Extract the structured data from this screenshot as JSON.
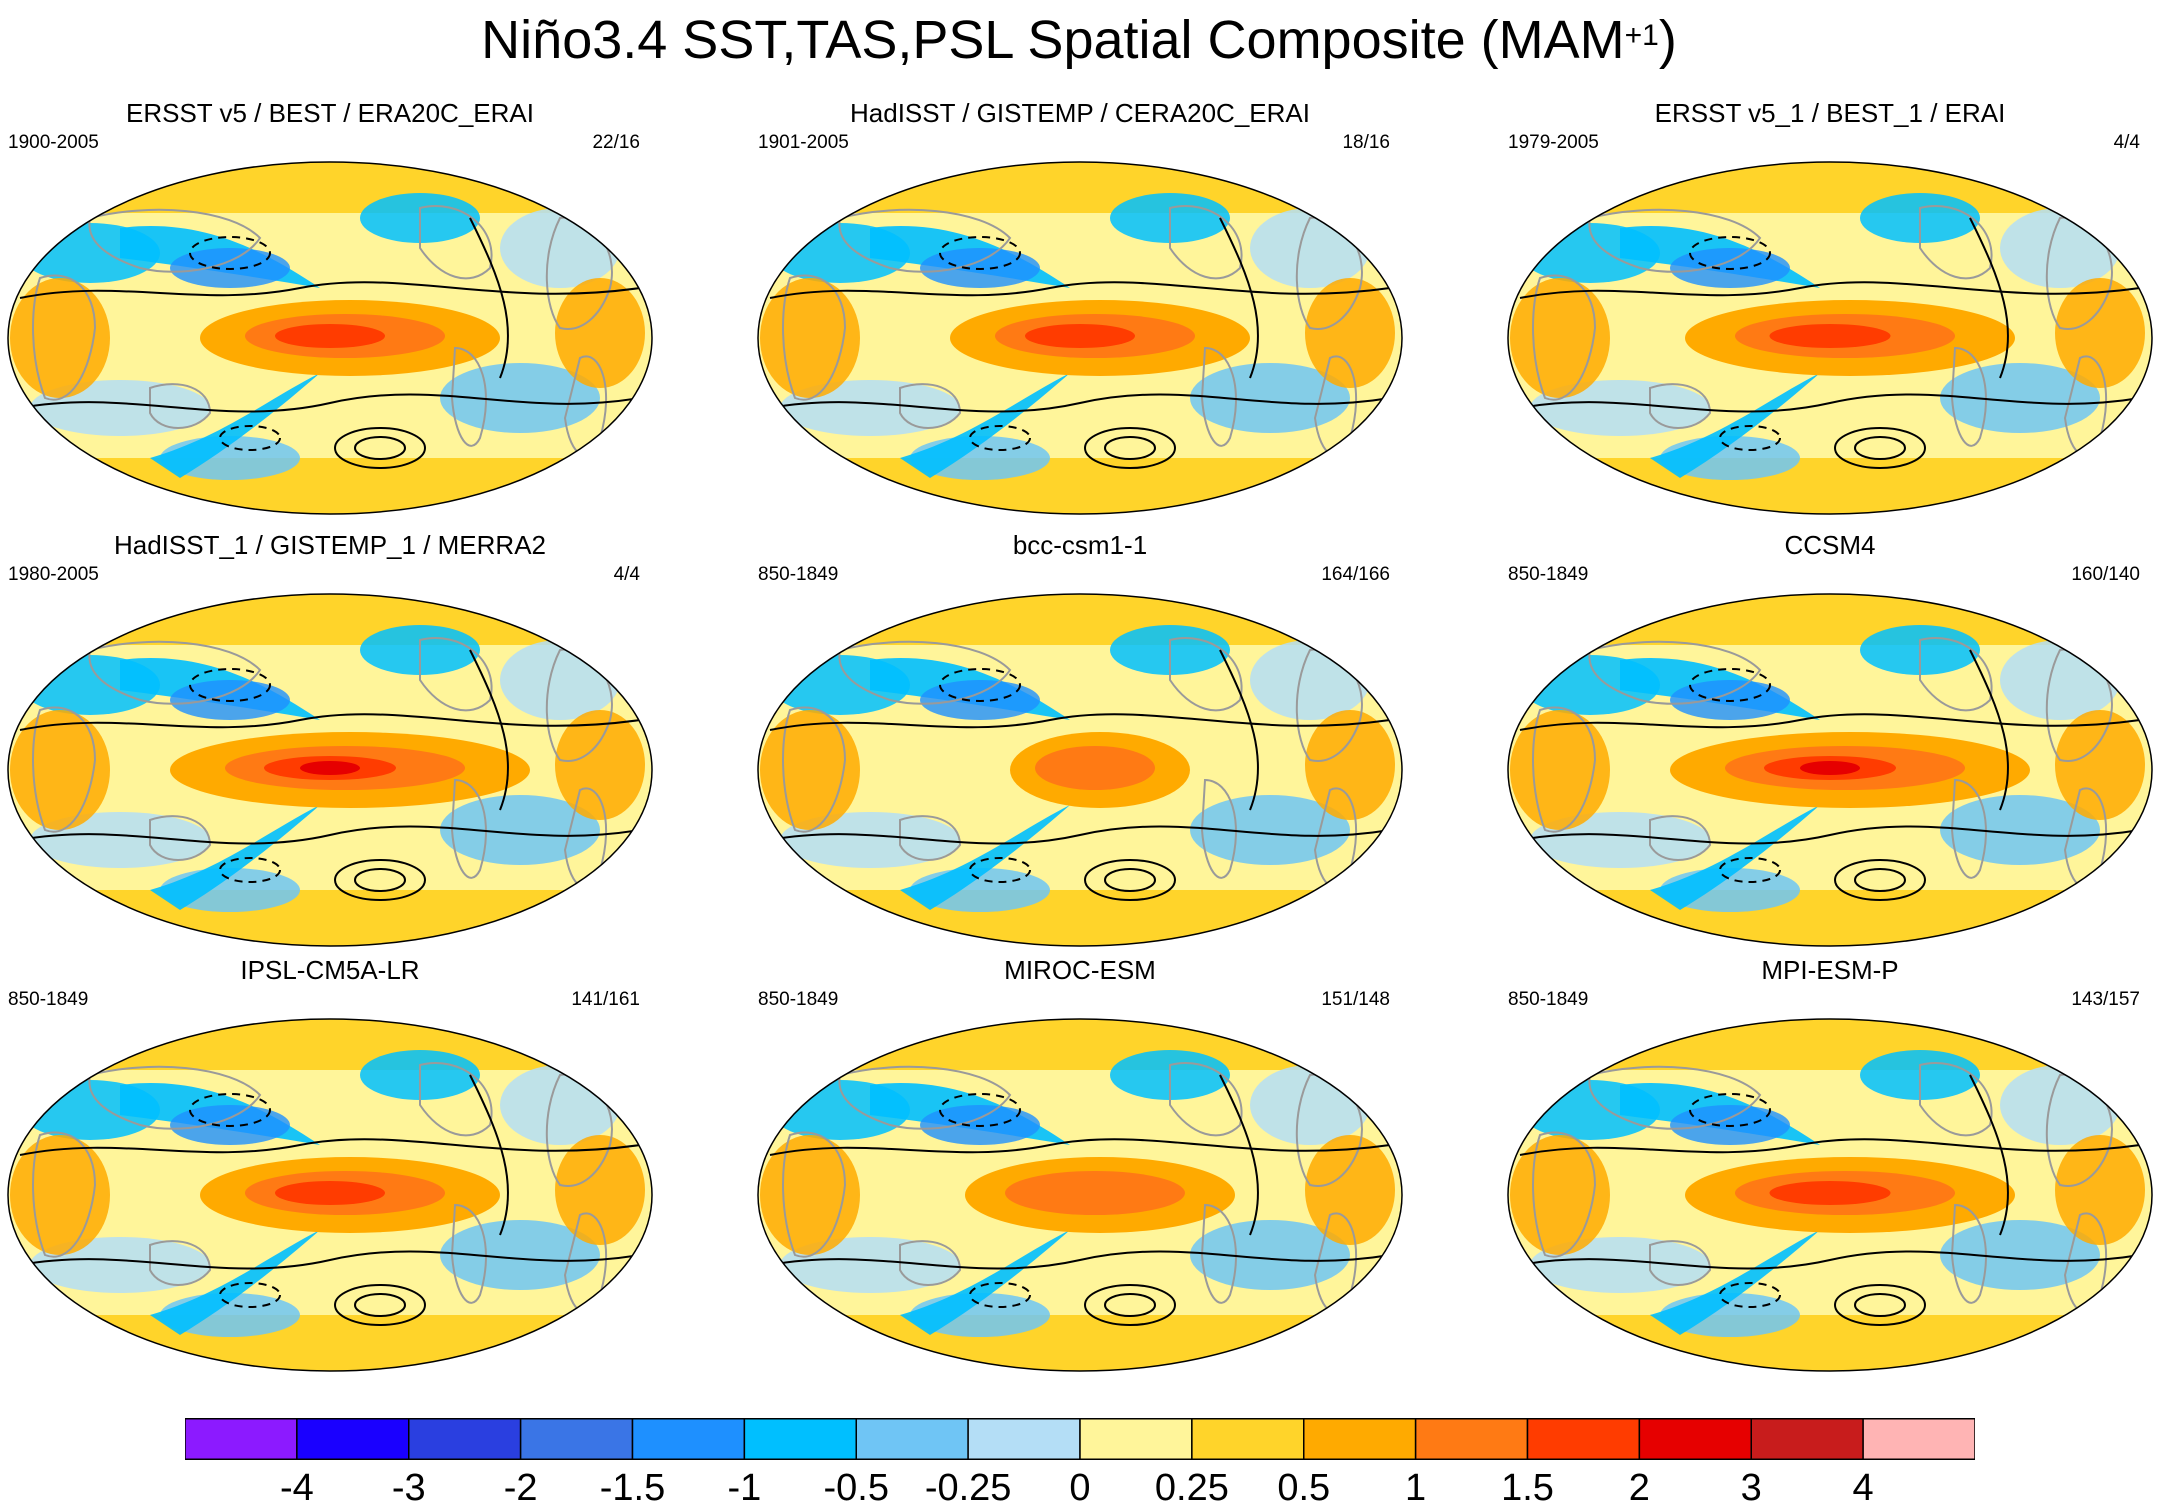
{
  "title": {
    "main": "Niño3.4 SST,TAS,PSL Spatial Composite (MAM",
    "superscript": "+1",
    "close": ")"
  },
  "panels": [
    {
      "id": "p1",
      "title": "ERSST v5 / BEST / ERA20C_ERAI",
      "period": "1900-2005",
      "count": "22/16"
    },
    {
      "id": "p2",
      "title": "HadISST / GISTEMP / CERA20C_ERAI",
      "period": "1901-2005",
      "count": "18/16"
    },
    {
      "id": "p3",
      "title": "ERSST v5_1 / BEST_1 / ERAI",
      "period": "1979-2005",
      "count": "4/4"
    },
    {
      "id": "p4",
      "title": "HadISST_1 / GISTEMP_1 / MERRA2",
      "period": "1980-2005",
      "count": "4/4"
    },
    {
      "id": "p5",
      "title": "bcc-csm1-1",
      "period": "850-1849",
      "count": "164/166"
    },
    {
      "id": "p6",
      "title": "CCSM4",
      "period": "850-1849",
      "count": "160/140"
    },
    {
      "id": "p7",
      "title": "IPSL-CM5A-LR",
      "period": "850-1849",
      "count": "141/161"
    },
    {
      "id": "p8",
      "title": "MIROC-ESM",
      "period": "850-1849",
      "count": "151/148"
    },
    {
      "id": "p9",
      "title": "MPI-ESM-P",
      "period": "850-1849",
      "count": "143/157"
    }
  ],
  "colorbar": {
    "colors": [
      "#8c1aff",
      "#1a00ff",
      "#2a3fe0",
      "#3a75e6",
      "#1e90ff",
      "#00bfff",
      "#6fc5f5",
      "#b4def6",
      "#fff59a",
      "#ffd42a",
      "#ffaa00",
      "#ff7a14",
      "#ff3c00",
      "#e60000",
      "#c81c1c",
      "#ffb4b4"
    ],
    "labels": [
      "-4",
      "-3",
      "-2",
      "-1.5",
      "-1",
      "-0.5",
      "-0.25",
      "0",
      "0.25",
      "0.5",
      "1",
      "1.5",
      "2",
      "3",
      "4"
    ]
  },
  "palette": {
    "land_outline": "#9a9a9a",
    "contour": "#000000"
  }
}
